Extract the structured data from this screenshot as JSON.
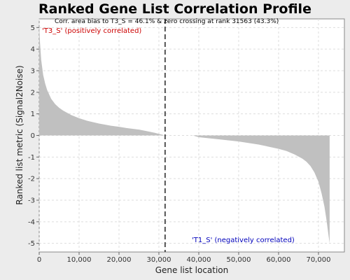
{
  "chart_data": {
    "type": "area",
    "title": "Ranked Gene List Correlation Profile",
    "note": "Corr. area bias to T3_S = 46.1% & zero crossing at rank 31563 (43.3%)",
    "xlabel": "Gene list location",
    "ylabel": "Ranked list metric (Signal2Noise)",
    "xlim": [
      0,
      76500
    ],
    "ylim": [
      -5.4,
      5.4
    ],
    "xticks": [
      0,
      10000,
      20000,
      30000,
      40000,
      50000,
      60000,
      70000
    ],
    "xtick_labels": [
      "0",
      "10,000",
      "20,000",
      "30,000",
      "40,000",
      "50,000",
      "60,000",
      "70,000"
    ],
    "yticks": [
      5,
      4,
      3,
      2,
      1,
      0,
      -1,
      -2,
      -3,
      -4,
      -5
    ],
    "ytick_labels": [
      "5",
      "4",
      "3",
      "2",
      "1",
      "0",
      "-1",
      "-2",
      "-3",
      "-4",
      "-5"
    ],
    "grid": true,
    "zero_crossing": 31563,
    "positive_label": "'T3_S' (positively correlated)",
    "negative_label": "'T1_S' (negatively correlated)",
    "fill_color": "#c0c0c0",
    "series": [
      {
        "x": [
          0,
          200,
          500,
          1000,
          1500,
          2000,
          3000,
          4000,
          5000,
          6000,
          8000,
          10000,
          12000,
          15000,
          18000,
          20000,
          22000,
          25000,
          27000,
          29000,
          30500,
          31563,
          38500,
          40000,
          45000,
          50000,
          55000,
          60000,
          62000,
          64000,
          66000,
          67000,
          68000,
          69000,
          70000,
          70800,
          71500,
          72000,
          72500,
          72800
        ],
        "y": [
          5.2,
          4.3,
          3.5,
          2.8,
          2.4,
          2.1,
          1.7,
          1.45,
          1.28,
          1.15,
          0.95,
          0.8,
          0.68,
          0.55,
          0.45,
          0.4,
          0.34,
          0.27,
          0.2,
          0.12,
          0.05,
          0.0,
          0.0,
          -0.08,
          -0.18,
          -0.28,
          -0.42,
          -0.62,
          -0.72,
          -0.88,
          -1.08,
          -1.22,
          -1.42,
          -1.72,
          -2.15,
          -2.7,
          -3.3,
          -3.9,
          -4.6,
          -5.0
        ]
      }
    ]
  }
}
